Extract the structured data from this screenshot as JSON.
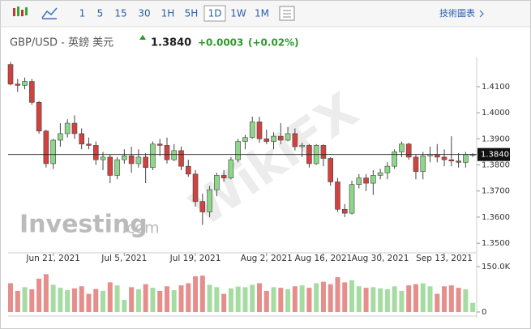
{
  "toolbar": {
    "intervals": [
      "1",
      "5",
      "15",
      "30",
      "1H",
      "5H",
      "1D",
      "1W",
      "1M"
    ],
    "selected": 6,
    "chart_link": "技術圖表"
  },
  "header": {
    "symbol": "GBP/USD - 英鎊 美元",
    "price": "1.3840",
    "change": "+0.0003",
    "change_pct": "(+0.02%)"
  },
  "watermarks": {
    "logo": "Investing",
    "logo_suffix": ".com",
    "overlay": "WikiFX"
  },
  "chart_data": {
    "type": "candlestick",
    "up_color": "#8ed68a",
    "down_color": "#d0413f",
    "volume_up_color": "#a5dca2",
    "volume_down_color": "#e58e8c",
    "x": [
      null,
      null,
      null,
      null,
      null,
      null,
      "Jun 21, 2021",
      null,
      null,
      null,
      null,
      null,
      null,
      null,
      null,
      null,
      "Jul 5, 2021",
      null,
      null,
      null,
      null,
      null,
      null,
      null,
      null,
      null,
      "Jul 19, 2021",
      null,
      null,
      null,
      null,
      null,
      null,
      null,
      null,
      null,
      "Aug 2, 2021",
      null,
      null,
      null,
      null,
      null,
      null,
      null,
      "Aug 16, 2021",
      null,
      null,
      null,
      null,
      null,
      null,
      null,
      "Aug 30, 2021",
      null,
      null,
      null,
      null,
      null,
      null,
      null,
      null,
      "Sep 13, 2021",
      null,
      null,
      null,
      null
    ],
    "open": [
      1.4185,
      1.411,
      1.4105,
      1.412,
      1.404,
      1.393,
      1.3805,
      1.3895,
      1.392,
      1.396,
      1.392,
      1.388,
      1.3875,
      1.382,
      1.383,
      1.376,
      1.382,
      1.3835,
      1.3805,
      1.383,
      1.379,
      1.388,
      1.3875,
      1.382,
      1.3855,
      1.3795,
      1.3765,
      1.366,
      1.362,
      1.3705,
      1.376,
      1.375,
      1.382,
      1.389,
      1.3905,
      1.3965,
      1.39,
      1.389,
      1.391,
      1.3895,
      1.392,
      1.387,
      1.3875,
      1.3805,
      1.3875,
      1.3825,
      1.3735,
      1.363,
      1.3615,
      1.3725,
      1.375,
      1.373,
      1.376,
      1.377,
      1.3795,
      1.385,
      1.388,
      1.383,
      1.3775,
      1.3835,
      1.384,
      1.383,
      1.382,
      1.3815,
      1.381,
      1.384
    ],
    "high": [
      1.4195,
      1.413,
      1.4135,
      1.413,
      1.4045,
      1.3935,
      1.39,
      1.396,
      1.3975,
      1.399,
      1.394,
      1.3905,
      1.389,
      1.385,
      1.384,
      1.383,
      1.386,
      1.387,
      1.386,
      1.3845,
      1.389,
      1.39,
      1.3905,
      1.388,
      1.387,
      1.382,
      1.378,
      1.369,
      1.372,
      1.377,
      1.378,
      1.383,
      1.39,
      1.3915,
      1.3985,
      1.3985,
      1.3935,
      1.3925,
      1.396,
      1.3945,
      1.394,
      1.3885,
      1.388,
      1.388,
      1.388,
      1.383,
      1.375,
      1.365,
      1.374,
      1.3765,
      1.3765,
      1.378,
      1.3785,
      1.381,
      1.386,
      1.389,
      1.3885,
      1.384,
      1.385,
      1.387,
      1.388,
      1.386,
      1.391,
      1.3845,
      1.385,
      1.3845
    ],
    "low": [
      1.4105,
      1.408,
      1.409,
      1.403,
      1.392,
      1.379,
      1.3785,
      1.387,
      1.3905,
      1.39,
      1.386,
      1.386,
      1.38,
      1.378,
      1.373,
      1.3745,
      1.3805,
      1.377,
      1.379,
      1.373,
      1.378,
      1.3835,
      1.3805,
      1.3815,
      1.378,
      1.3755,
      1.364,
      1.357,
      1.36,
      1.368,
      1.3735,
      1.3745,
      1.381,
      1.386,
      1.39,
      1.3885,
      1.388,
      1.386,
      1.388,
      1.389,
      1.3855,
      1.383,
      1.379,
      1.38,
      1.3795,
      1.372,
      1.362,
      1.36,
      1.361,
      1.371,
      1.37,
      1.3685,
      1.3745,
      1.3745,
      1.3785,
      1.383,
      1.382,
      1.3745,
      1.3745,
      1.381,
      1.381,
      1.3795,
      1.3795,
      1.379,
      1.379,
      1.383
    ],
    "close": [
      1.411,
      1.4105,
      1.412,
      1.404,
      1.393,
      1.3805,
      1.3895,
      1.392,
      1.396,
      1.392,
      1.388,
      1.3875,
      1.382,
      1.383,
      1.376,
      1.382,
      1.3835,
      1.3805,
      1.383,
      1.379,
      1.388,
      1.3875,
      1.382,
      1.3855,
      1.3795,
      1.3765,
      1.366,
      1.362,
      1.3705,
      1.376,
      1.375,
      1.382,
      1.389,
      1.3905,
      1.3965,
      1.39,
      1.389,
      1.391,
      1.3895,
      1.392,
      1.387,
      1.3875,
      1.3805,
      1.3875,
      1.3825,
      1.3735,
      1.363,
      1.3615,
      1.3725,
      1.375,
      1.373,
      1.376,
      1.377,
      1.3795,
      1.385,
      1.388,
      1.383,
      1.3775,
      1.3835,
      1.384,
      1.383,
      1.382,
      1.3815,
      1.381,
      1.384,
      1.384
    ],
    "volume": [
      95000,
      70000,
      82000,
      75000,
      110000,
      125000,
      90000,
      80000,
      72000,
      78000,
      85000,
      60000,
      76000,
      70000,
      98000,
      88000,
      40000,
      82000,
      75000,
      92000,
      80000,
      70000,
      85000,
      72000,
      88000,
      95000,
      118000,
      120000,
      90000,
      82000,
      60000,
      78000,
      84000,
      82000,
      90000,
      95000,
      70000,
      82000,
      80000,
      75000,
      85000,
      88000,
      80000,
      95000,
      100000,
      92000,
      115000,
      98000,
      105000,
      85000,
      80000,
      82000,
      78000,
      75000,
      85000,
      70000,
      88000,
      92000,
      95000,
      85000,
      60000,
      85000,
      88000,
      80000,
      75000,
      30000
    ],
    "ylim": [
      1.346,
      1.419
    ],
    "yticks": [
      {
        "value": 1.41,
        "label": "1.4100"
      },
      {
        "value": 1.4,
        "label": "1.4000"
      },
      {
        "value": 1.39,
        "label": "1.3900"
      },
      {
        "value": 1.38,
        "label": "1.3800"
      },
      {
        "value": 1.37,
        "label": "1.3700"
      },
      {
        "value": 1.36,
        "label": "1.3600"
      },
      {
        "value": 1.35,
        "label": "1.3500"
      }
    ],
    "y2lim": [
      0,
      150000
    ],
    "y2ticks": [
      {
        "value": 150000,
        "label": "150.0K"
      },
      0
    ],
    "last": {
      "value": 1.384,
      "label": "1.3840"
    }
  }
}
